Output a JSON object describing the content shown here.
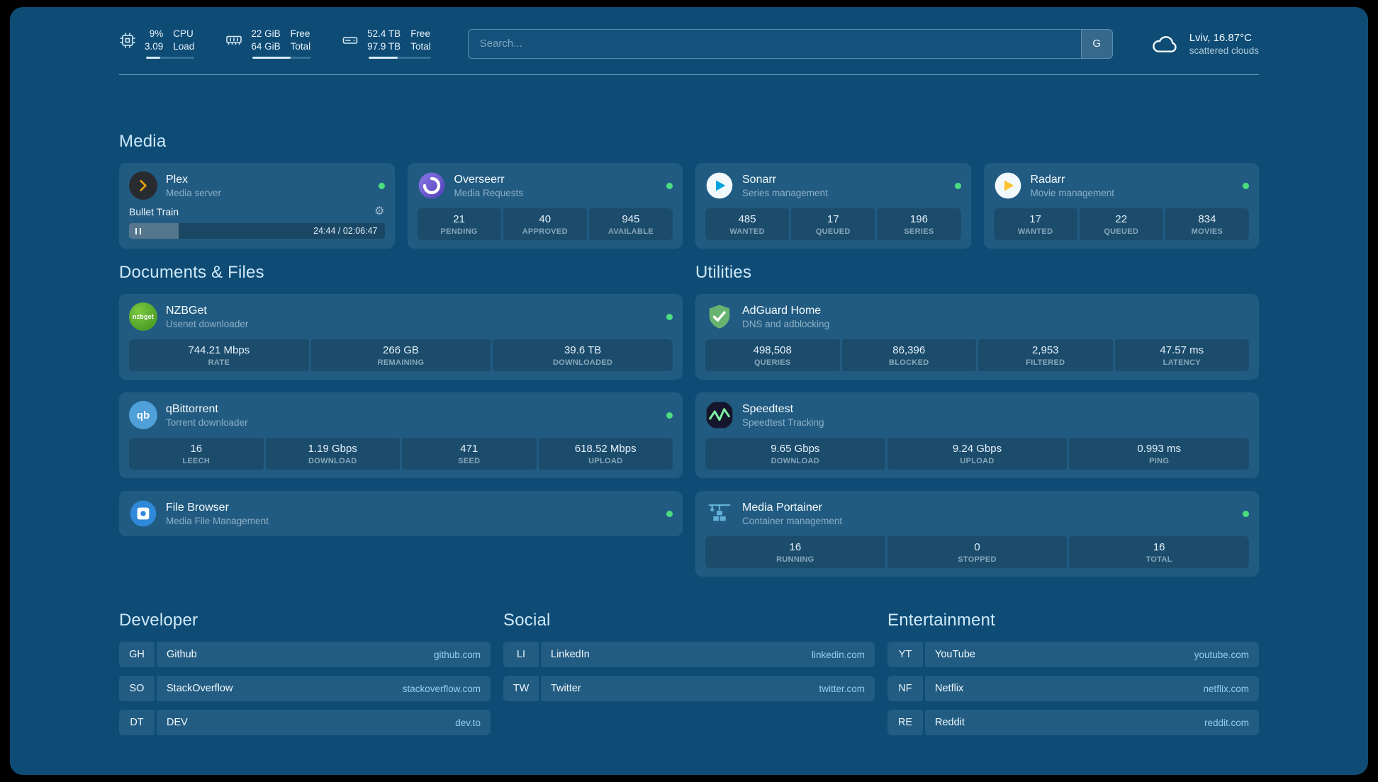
{
  "theme": {
    "page_bg": "#0e4c76",
    "status_online": "#4ade80",
    "heading_text": "#cfe9f8",
    "domain_text": "#93cdf1",
    "plex_accent": "#e5a00d",
    "sonarr_accent": "#00a4dc",
    "radarr_accent": "#ffc230",
    "adguard_green": "#67b471",
    "speedtest_wave": "#7ef0a2"
  },
  "topbar": {
    "resources": [
      {
        "icon": "cpu-icon",
        "value_top": "9%",
        "value_bottom": "3.09",
        "label_top": "CPU",
        "label_bottom": "Load",
        "progress_pct": 30
      },
      {
        "icon": "memory-icon",
        "value_top": "22 GiB",
        "value_bottom": "64 GiB",
        "label_top": "Free",
        "label_bottom": "Total",
        "progress_pct": 65
      },
      {
        "icon": "disk-icon",
        "value_top": "52.4 TB",
        "value_bottom": "97.9 TB",
        "label_top": "Free",
        "label_bottom": "Total",
        "progress_pct": 47
      }
    ],
    "search": {
      "placeholder": "Search...",
      "provider_button": "G"
    },
    "weather": {
      "location": "Lviv, 16.87°C",
      "condition": "scattered clouds"
    }
  },
  "sections": {
    "media": {
      "title": "Media",
      "services": [
        {
          "name": "Plex",
          "description": "Media server",
          "status": "online",
          "now_playing": {
            "title": "Bullet Train",
            "time_display": "24:44 / 02:06:47",
            "progress_pct": 19.5
          }
        },
        {
          "name": "Overseerr",
          "description": "Media Requests",
          "status": "online",
          "stats": [
            {
              "value": "21",
              "label": "PENDING"
            },
            {
              "value": "40",
              "label": "APPROVED"
            },
            {
              "value": "945",
              "label": "AVAILABLE"
            }
          ]
        },
        {
          "name": "Sonarr",
          "description": "Series management",
          "status": "online",
          "stats": [
            {
              "value": "485",
              "label": "WANTED"
            },
            {
              "value": "17",
              "label": "QUEUED"
            },
            {
              "value": "196",
              "label": "SERIES"
            }
          ]
        },
        {
          "name": "Radarr",
          "description": "Movie management",
          "status": "online",
          "stats": [
            {
              "value": "17",
              "label": "WANTED"
            },
            {
              "value": "22",
              "label": "QUEUED"
            },
            {
              "value": "834",
              "label": "MOVIES"
            }
          ]
        }
      ]
    },
    "documents": {
      "title": "Documents & Files",
      "services": [
        {
          "name": "NZBGet",
          "description": "Usenet downloader",
          "status": "online",
          "stats": [
            {
              "value": "744.21 Mbps",
              "label": "RATE"
            },
            {
              "value": "266 GB",
              "label": "REMAINING"
            },
            {
              "value": "39.6 TB",
              "label": "DOWNLOADED"
            }
          ]
        },
        {
          "name": "qBittorrent",
          "description": "Torrent downloader",
          "status": "online",
          "stats": [
            {
              "value": "16",
              "label": "LEECH"
            },
            {
              "value": "1.19 Gbps",
              "label": "DOWNLOAD"
            },
            {
              "value": "471",
              "label": "SEED"
            },
            {
              "value": "618.52 Mbps",
              "label": "UPLOAD"
            }
          ]
        },
        {
          "name": "File Browser",
          "description": "Media File Management",
          "status": "online"
        }
      ]
    },
    "utilities": {
      "title": "Utilities",
      "services": [
        {
          "name": "AdGuard Home",
          "description": "DNS and adblocking",
          "stats": [
            {
              "value": "498,508",
              "label": "QUERIES"
            },
            {
              "value": "86,396",
              "label": "BLOCKED"
            },
            {
              "value": "2,953",
              "label": "FILTERED"
            },
            {
              "value": "47.57 ms",
              "label": "LATENCY"
            }
          ]
        },
        {
          "name": "Speedtest",
          "description": "Speedtest Tracking",
          "stats": [
            {
              "value": "9.65 Gbps",
              "label": "DOWNLOAD"
            },
            {
              "value": "9.24 Gbps",
              "label": "UPLOAD"
            },
            {
              "value": "0.993 ms",
              "label": "PING"
            }
          ]
        },
        {
          "name": "Media Portainer",
          "description": "Container management",
          "status": "online",
          "stats": [
            {
              "value": "16",
              "label": "RUNNING"
            },
            {
              "value": "0",
              "label": "STOPPED"
            },
            {
              "value": "16",
              "label": "TOTAL"
            }
          ]
        }
      ]
    },
    "bookmarks": [
      {
        "title": "Developer",
        "links": [
          {
            "abbr": "GH",
            "name": "Github",
            "domain": "github.com"
          },
          {
            "abbr": "SO",
            "name": "StackOverflow",
            "domain": "stackoverflow.com"
          },
          {
            "abbr": "DT",
            "name": "DEV",
            "domain": "dev.to"
          }
        ]
      },
      {
        "title": "Social",
        "links": [
          {
            "abbr": "LI",
            "name": "LinkedIn",
            "domain": "linkedin.com"
          },
          {
            "abbr": "TW",
            "name": "Twitter",
            "domain": "twitter.com"
          }
        ]
      },
      {
        "title": "Entertainment",
        "links": [
          {
            "abbr": "YT",
            "name": "YouTube",
            "domain": "youtube.com"
          },
          {
            "abbr": "NF",
            "name": "Netflix",
            "domain": "netflix.com"
          },
          {
            "abbr": "RE",
            "name": "Reddit",
            "domain": "reddit.com"
          }
        ]
      }
    ]
  }
}
